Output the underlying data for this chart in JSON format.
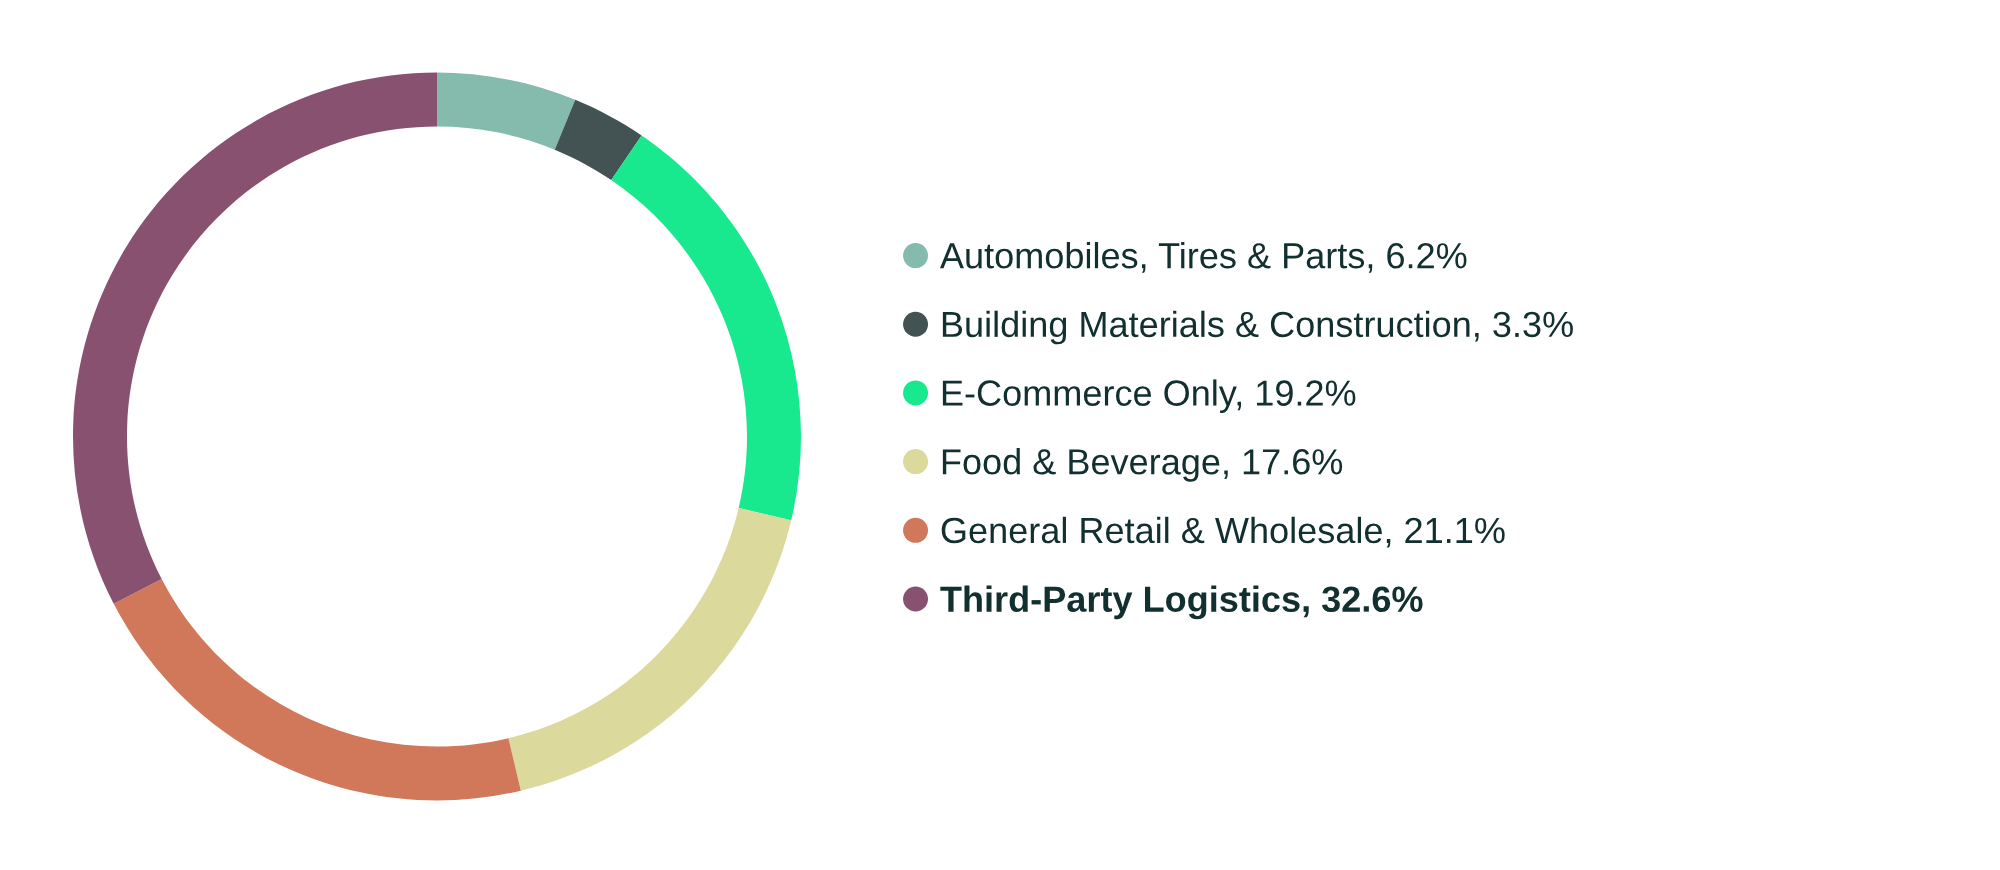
{
  "chart_data": {
    "type": "donut",
    "categories": [
      "Automobiles, Tires & Parts, 6.2%",
      "Building Materials & Construction, 3.3%",
      "E-Commerce Only, 19.2%",
      "Food & Beverage, 17.6%",
      "General Retail & Wholesale, 21.1%",
      "Third-Party Logistics, 32.6%"
    ],
    "values": [
      6.2,
      3.3,
      19.2,
      17.6,
      21.1,
      32.6
    ],
    "colors": [
      "#84bbac",
      "#435253",
      "#18e88e",
      "#dbd99c",
      "#d2785a",
      "#895170"
    ],
    "legend": "right"
  }
}
